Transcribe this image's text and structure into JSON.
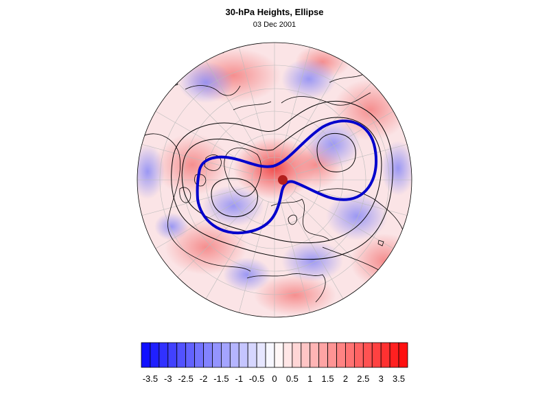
{
  "title": "30-hPa Heights, Ellipse",
  "subtitle": "03 Dec 2001",
  "map": {
    "projection": "polar-stereographic-north",
    "anomaly_colors": {
      "negative": "#1010ff",
      "neutral": "#ffffff",
      "positive": "#ff1010"
    },
    "ellipse_color": "#0000cc",
    "center_marker_color": "#b3201e",
    "contour_color": "#000000"
  },
  "colorbar": {
    "tick_labels": [
      "-3.5",
      "-3",
      "-2.5",
      "-2",
      "-1.5",
      "-1",
      "-0.5",
      "0",
      "0.5",
      "1",
      "1.5",
      "2",
      "2.5",
      "3",
      "3.5"
    ],
    "min": -3.75,
    "max": 3.75,
    "step": 0.25
  }
}
